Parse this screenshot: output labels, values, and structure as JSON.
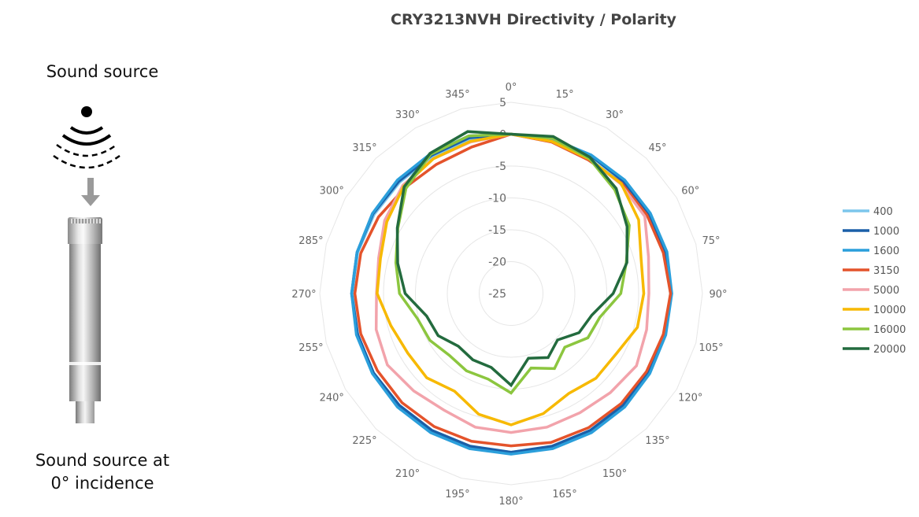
{
  "left_panel": {
    "top_label": "Sound source",
    "bottom_label_line1": "Sound source at",
    "bottom_label_line2": "0° incidence",
    "icons": [
      "sound-wave-icon",
      "arrow-down-icon",
      "microphone-image"
    ]
  },
  "chart_data": {
    "type": "polar-line",
    "title": "CRY3213NVH Directivity / Polarity",
    "angle_unit": "degrees",
    "angles": [
      0,
      15,
      30,
      45,
      60,
      75,
      90,
      105,
      120,
      135,
      150,
      165,
      180,
      195,
      210,
      225,
      240,
      255,
      270,
      285,
      300,
      315,
      330,
      345
    ],
    "angle_labels": [
      "0°",
      "15°",
      "30°",
      "45°",
      "60°",
      "75°",
      "90°",
      "105°",
      "120°",
      "135°",
      "150°",
      "165°",
      "180°",
      "195°",
      "210°",
      "225°",
      "240°",
      "255°",
      "270°",
      "285°",
      "300°",
      "315°",
      "330°",
      "345°"
    ],
    "radial_range": [
      -25,
      5
    ],
    "radial_ticks": [
      5,
      0,
      -5,
      -10,
      -15,
      -20,
      -25
    ],
    "grid": true,
    "legend_position": "right",
    "series": [
      {
        "name": "400",
        "color": "#7cc6ec",
        "values": [
          0,
          0,
          -0.1,
          -0.2,
          -0.2,
          -0.1,
          0,
          -0.1,
          -0.1,
          -0.1,
          -0.1,
          -0.1,
          -0.1,
          -0.1,
          -0.1,
          -0.1,
          -0.1,
          -0.1,
          -0.1,
          -0.1,
          -0.2,
          -0.3,
          -0.2,
          -0.1
        ]
      },
      {
        "name": "1000",
        "color": "#1a5fa8",
        "values": [
          0,
          0,
          0,
          -0.1,
          -0.1,
          0,
          0.1,
          0,
          -0.1,
          -0.2,
          -0.2,
          -0.2,
          -0.1,
          -0.2,
          -0.2,
          -0.2,
          -0.1,
          -0.1,
          0,
          0,
          0,
          -0.1,
          0,
          0.3
        ]
      },
      {
        "name": "1600",
        "color": "#2b9fdb",
        "values": [
          0,
          0.1,
          0.1,
          0.2,
          0.2,
          0.3,
          0.2,
          0.1,
          0.1,
          0.2,
          0.2,
          0.2,
          0.2,
          0.2,
          0.2,
          0.2,
          0.1,
          0.1,
          0,
          0,
          0.1,
          0.2,
          0.3,
          0.6
        ]
      },
      {
        "name": "3150",
        "color": "#e4532b",
        "values": [
          0,
          -0.4,
          -0.8,
          -0.5,
          -0.4,
          -0.3,
          0,
          -0.3,
          -0.5,
          -0.6,
          -0.7,
          -0.8,
          -1.1,
          -1,
          -0.9,
          -0.8,
          -0.8,
          -0.6,
          -0.5,
          -0.6,
          -1,
          -1.5,
          -1.6,
          -1.2
        ]
      },
      {
        "name": "5000",
        "color": "#f2a3ab",
        "values": [
          0,
          -0.3,
          -0.6,
          -0.7,
          -0.8,
          -2.7,
          -3.4,
          -3,
          -2.3,
          -3,
          -3.4,
          -3.3,
          -3.2,
          -3.3,
          -3.9,
          -3.4,
          -2.6,
          -3.1,
          -3.9,
          -3.5,
          -2.1,
          -1,
          -0.6,
          -0.4
        ]
      },
      {
        "name": "10000",
        "color": "#f7b900",
        "values": [
          0,
          -0.3,
          -0.6,
          -0.6,
          -1.9,
          -3.9,
          -4.2,
          -4.5,
          -6,
          -6.2,
          -6.9,
          -5.5,
          -4.4,
          -5.4,
          -7.3,
          -6.3,
          -6.3,
          -5.5,
          -4,
          -3.8,
          -2.5,
          -1.2,
          -0.6,
          -0.3
        ]
      },
      {
        "name": "16000",
        "color": "#8cc63f",
        "values": [
          0,
          0.2,
          -0.5,
          -2,
          -3.6,
          -6.3,
          -7.8,
          -10.6,
          -11.1,
          -13.1,
          -11.4,
          -12.9,
          -9.4,
          -11.1,
          -11,
          -11.3,
          -10.3,
          -9.8,
          -7.5,
          -6.3,
          -4.5,
          -1.7,
          0.2,
          0.6
        ]
      },
      {
        "name": "20000",
        "color": "#236b3e",
        "values": [
          0,
          0.5,
          -0.3,
          -1.7,
          -4,
          -6.2,
          -9,
          -11.9,
          -12.7,
          -14.7,
          -13.4,
          -14.5,
          -10.6,
          -13,
          -13,
          -13.3,
          -11.8,
          -11.3,
          -8.4,
          -6.6,
          -4.4,
          -1.3,
          0.4,
          1.3
        ]
      }
    ]
  }
}
